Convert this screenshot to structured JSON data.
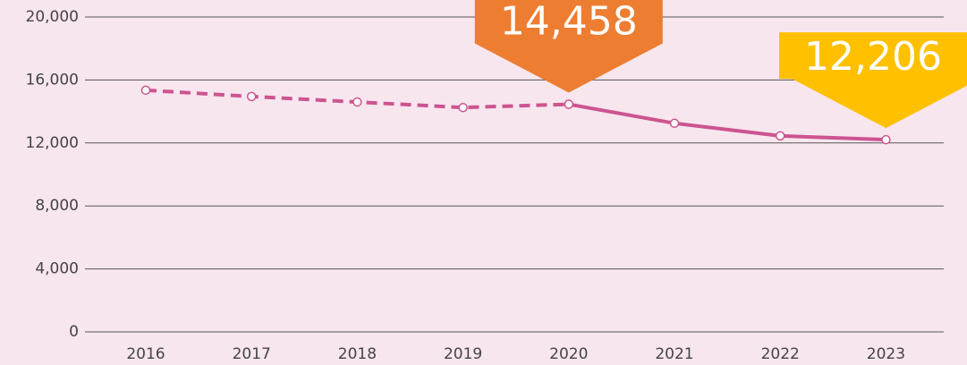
{
  "chart_data": {
    "type": "line",
    "categories": [
      "2016",
      "2017",
      "2018",
      "2019",
      "2020",
      "2021",
      "2022",
      "2023"
    ],
    "series": [
      {
        "color": "#cc5490",
        "dashed": true,
        "values": [
          15350,
          14950,
          14600,
          14250,
          14458,
          null,
          null,
          null
        ]
      },
      {
        "color": "#cc5490",
        "dashed": false,
        "values": [
          null,
          null,
          null,
          null,
          14458,
          13250,
          12450,
          12206
        ],
        "value_labels": [
          null,
          null,
          null,
          null,
          "14,458",
          null,
          null,
          "12,206"
        ],
        "value_label_colors": [
          null,
          null,
          null,
          null,
          "#ed7d31",
          null,
          null,
          "#ffc000"
        ]
      }
    ],
    "ylim": [
      0,
      20000
    ],
    "yticks": [
      {
        "value": 0,
        "label": "0"
      },
      {
        "value": 4000,
        "label": "4,000"
      },
      {
        "value": 8000,
        "label": "8,000"
      },
      {
        "value": 12000,
        "label": "12,000"
      },
      {
        "value": 16000,
        "label": "16,000"
      },
      {
        "value": 20000,
        "label": "20,000"
      }
    ],
    "grid": true
  }
}
